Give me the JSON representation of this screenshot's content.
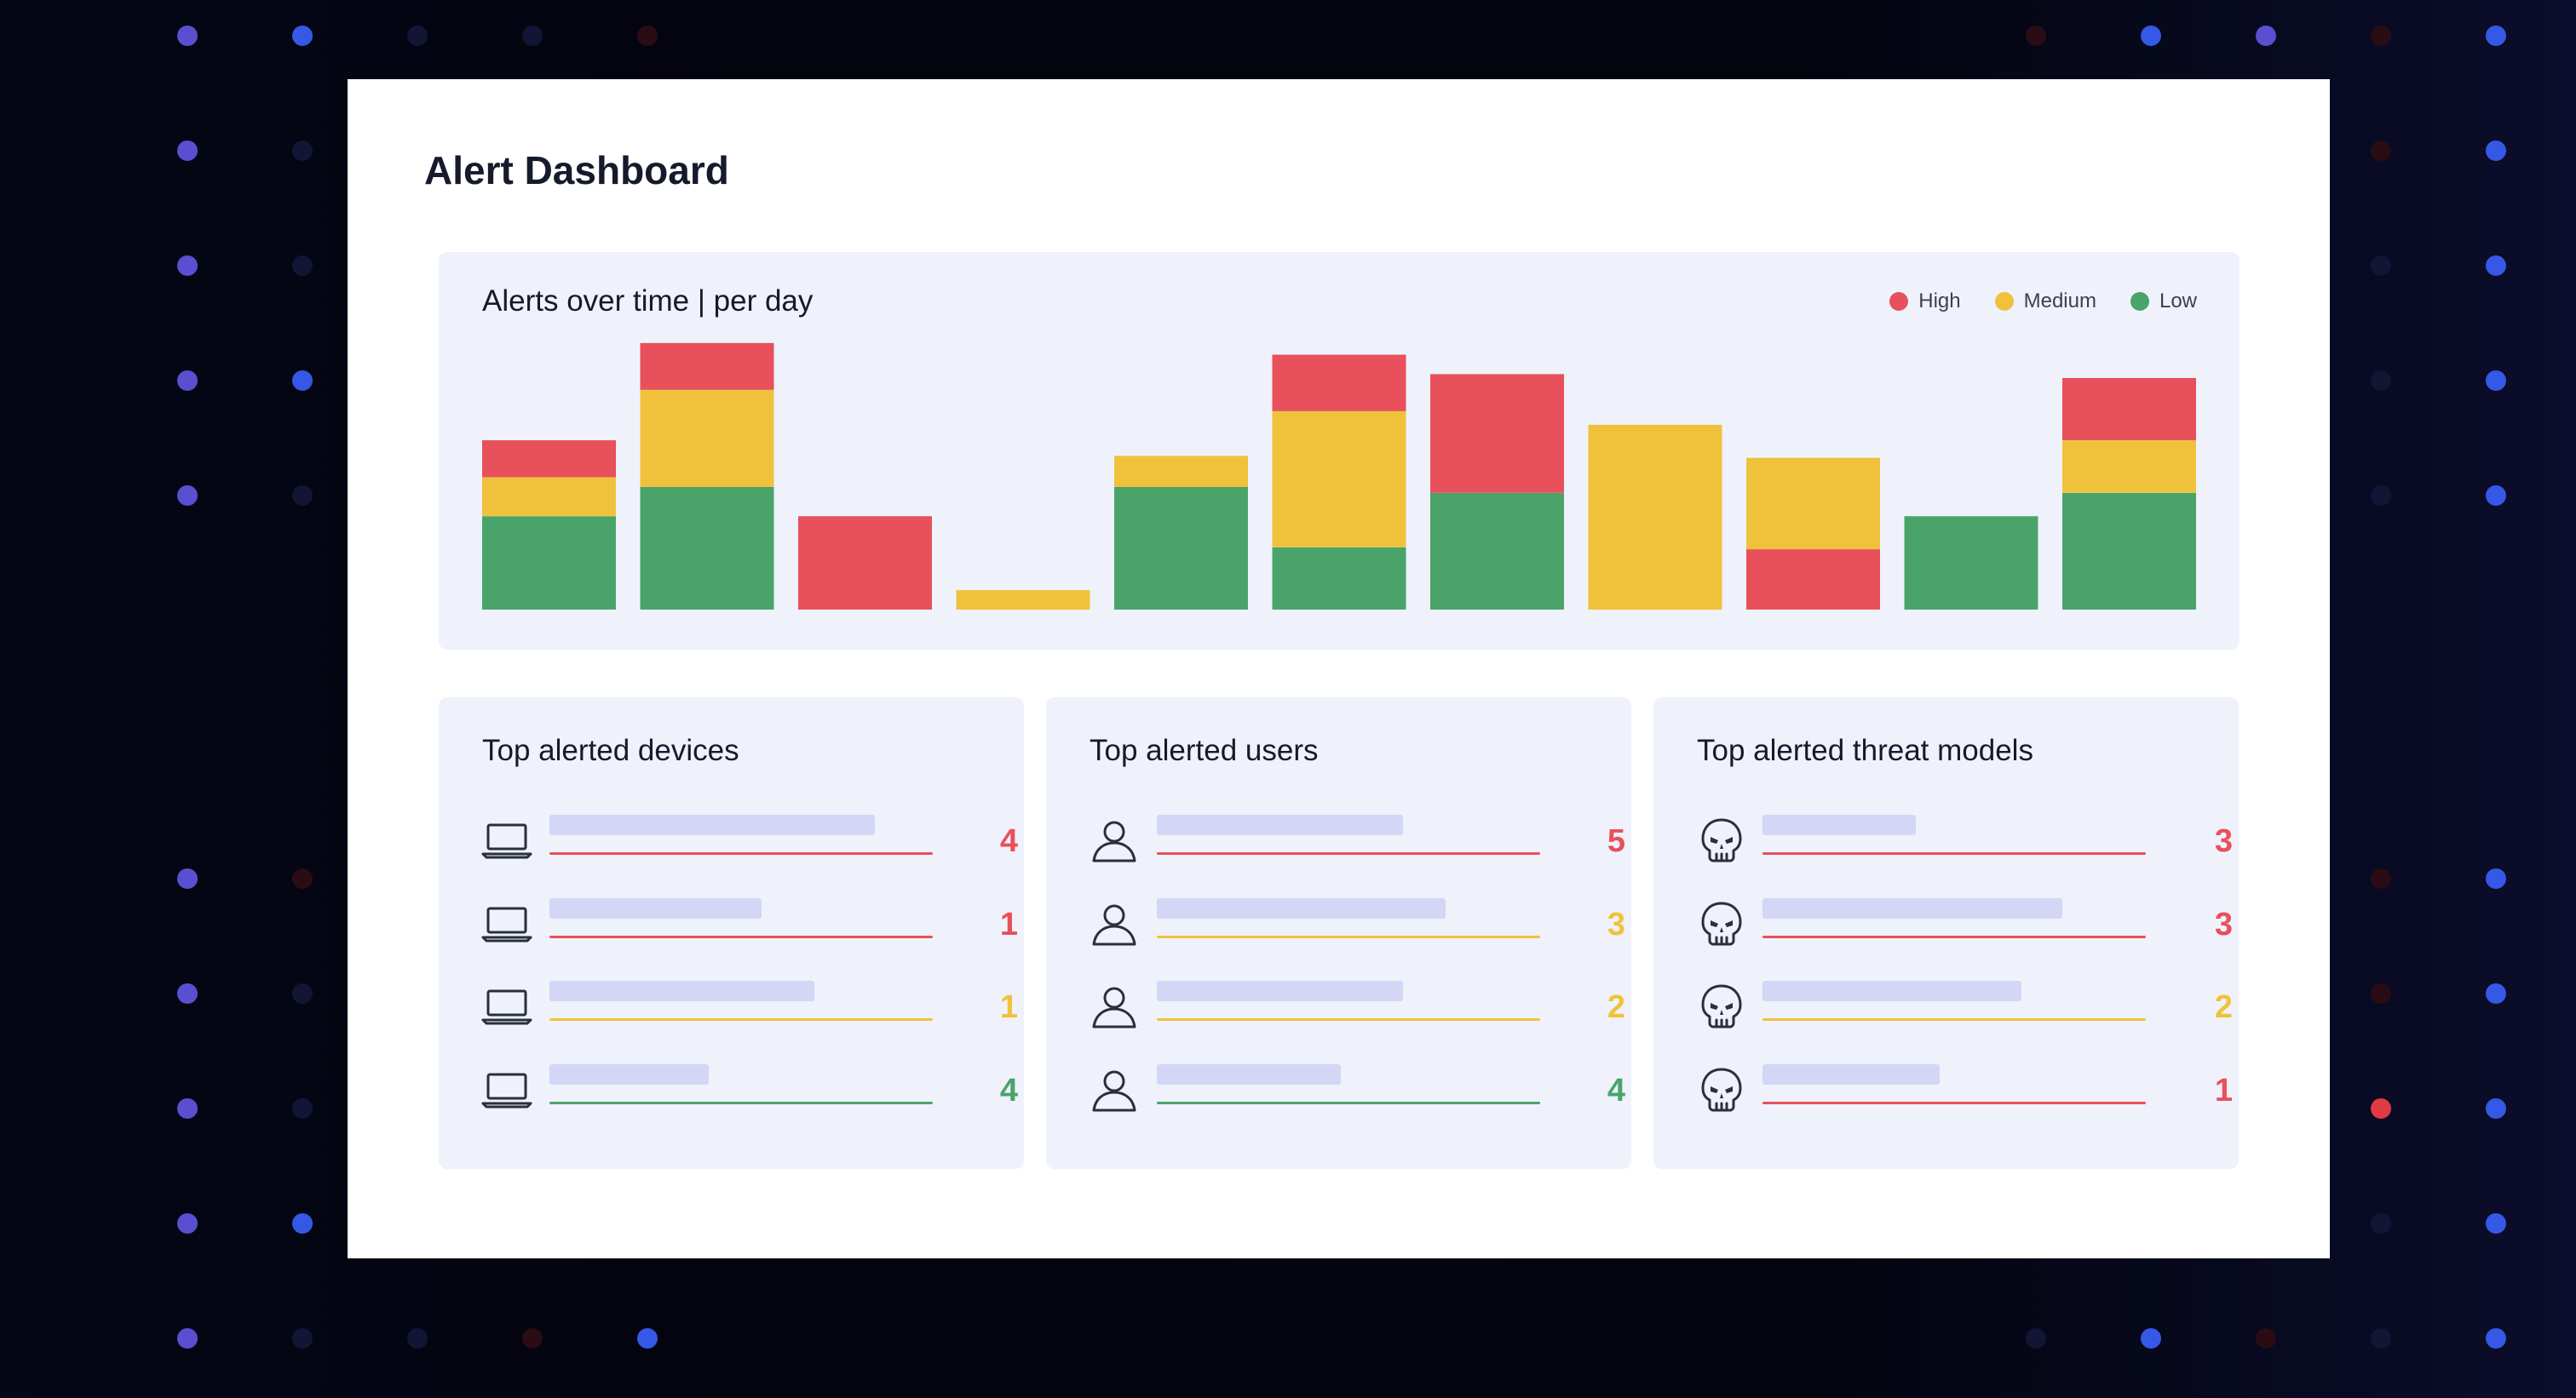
{
  "dashboard": {
    "title": "Alert Dashboard"
  },
  "colors": {
    "high": "#e8505b",
    "medium": "#f0c23c",
    "low": "#4aa46a",
    "bar_track": "#d3d6f4"
  },
  "alerts_chart": {
    "title": "Alerts over time | per day",
    "legend": [
      {
        "label": "High",
        "color": "#e8505b"
      },
      {
        "label": "Medium",
        "color": "#f0c23c"
      },
      {
        "label": "Low",
        "color": "#4aa46a"
      }
    ]
  },
  "chart_data": {
    "type": "bar",
    "stacked": true,
    "title": "Alerts over time | per day",
    "categories": [
      "",
      "",
      "",
      "",
      "",
      "",
      "",
      "",
      "",
      "",
      ""
    ],
    "series": [
      {
        "name": "Low",
        "color": "#4aa46a",
        "values": [
          48,
          63,
          0,
          0,
          63,
          32,
          60,
          0,
          0,
          48,
          60
        ]
      },
      {
        "name": "Medium",
        "color": "#f0c23c",
        "values": [
          20,
          50,
          0,
          10,
          16,
          70,
          0,
          95,
          47,
          0,
          27
        ]
      },
      {
        "name": "High",
        "color": "#e8505b",
        "values": [
          19,
          24,
          48,
          0,
          0,
          29,
          61,
          0,
          31,
          0,
          32
        ]
      }
    ],
    "stack_order_bottom_to_top": [
      [
        "Low",
        "Medium",
        "High"
      ],
      [
        "Low",
        "Medium",
        "High"
      ],
      [
        "High"
      ],
      [
        "Medium"
      ],
      [
        "Low",
        "Medium"
      ],
      [
        "Low",
        "Medium",
        "High"
      ],
      [
        "Low",
        "High"
      ],
      [
        "Medium"
      ],
      [
        "High",
        "Medium"
      ],
      [
        "Low"
      ],
      [
        "Low",
        "Medium",
        "High"
      ]
    ],
    "ylim": [
      0,
      140
    ],
    "grid": false,
    "legend_position": "top-right"
  },
  "panels": {
    "devices": {
      "title": "Top alerted devices",
      "icon": "laptop-icon",
      "items": [
        {
          "count": "4",
          "level": "high",
          "bar_fraction": 0.92
        },
        {
          "count": "1",
          "level": "high",
          "bar_fraction": 0.6
        },
        {
          "count": "1",
          "level": "medium",
          "bar_fraction": 0.75
        },
        {
          "count": "4",
          "level": "low",
          "bar_fraction": 0.45
        }
      ]
    },
    "users": {
      "title": "Top alerted users",
      "icon": "user-icon",
      "items": [
        {
          "count": "5",
          "level": "high",
          "bar_fraction": 0.75
        },
        {
          "count": "3",
          "level": "medium",
          "bar_fraction": 0.88
        },
        {
          "count": "2",
          "level": "medium",
          "bar_fraction": 0.75
        },
        {
          "count": "4",
          "level": "low",
          "bar_fraction": 0.56
        }
      ]
    },
    "threat_models": {
      "title": "Top alerted threat models",
      "icon": "skull-icon",
      "items": [
        {
          "count": "3",
          "level": "high",
          "bar_fraction": 0.45
        },
        {
          "count": "3",
          "level": "high",
          "bar_fraction": 0.88
        },
        {
          "count": "2",
          "level": "medium",
          "bar_fraction": 0.76
        },
        {
          "count": "1",
          "level": "high",
          "bar_fraction": 0.52
        }
      ]
    }
  }
}
